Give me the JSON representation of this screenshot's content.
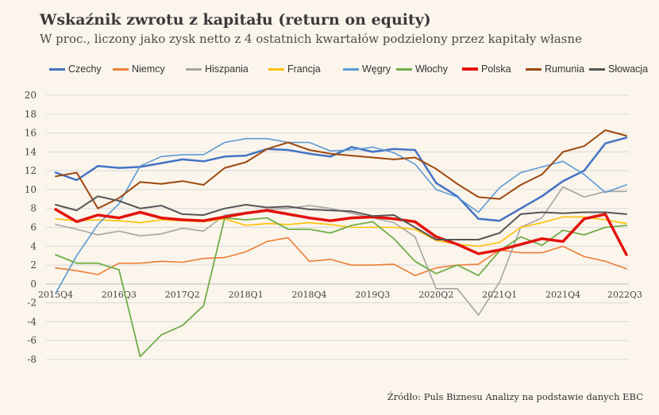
{
  "title": "Wskaźnik zwrotu z kapitału (return on equity)",
  "subtitle": "W proc., liczony jako zysk netto z 4 ostatnich kwartałów podzielony przez kapitały własne",
  "source": "Źródło: Puls Biznesu Analizy na podstawie danych EBC",
  "chart_data": {
    "type": "line",
    "title": "Wskaźnik zwrotu z kapitału (return on equity)",
    "ylim": [
      -8,
      20
    ],
    "yticks": [
      -8,
      -6,
      -4,
      -2,
      0,
      2,
      4,
      6,
      8,
      10,
      12,
      14,
      16,
      18,
      20
    ],
    "grid": true,
    "legend": "top",
    "x": [
      "2015Q4",
      "2016Q1",
      "2016Q2",
      "2016Q3",
      "2016Q4",
      "2017Q1",
      "2017Q2",
      "2017Q3",
      "2017Q4",
      "2018Q1",
      "2018Q2",
      "2018Q3",
      "2018Q4",
      "2019Q1",
      "2019Q2",
      "2019Q3",
      "2019Q4",
      "2020Q1",
      "2020Q2",
      "2020Q3",
      "2020Q4",
      "2021Q1",
      "2021Q2",
      "2021Q3",
      "2021Q4",
      "2022Q1",
      "2022Q2",
      "2022Q3"
    ],
    "xtick_labels": [
      "2015Q4",
      "",
      "",
      "2016Q3",
      "",
      "",
      "2017Q2",
      "",
      "",
      "2018Q1",
      "",
      "",
      "2018Q4",
      "",
      "",
      "2019Q3",
      "",
      "",
      "2020Q2",
      "",
      "",
      "2021Q1",
      "",
      "",
      "2021Q4",
      "",
      "",
      "2022Q3"
    ],
    "series": [
      {
        "name": "Czechy",
        "color": "#4472c4",
        "width": 2.5,
        "values": [
          11.8,
          11.0,
          12.5,
          12.3,
          12.4,
          12.8,
          13.2,
          13.0,
          13.5,
          13.6,
          14.3,
          14.2,
          13.8,
          13.5,
          14.5,
          14.0,
          14.3,
          14.2,
          10.7,
          9.3,
          6.9,
          6.7,
          8.0,
          9.3,
          10.9,
          12.0,
          14.9,
          15.5
        ]
      },
      {
        "name": "Niemcy",
        "color": "#ed7d31",
        "width": 1.6,
        "values": [
          1.7,
          1.4,
          1.0,
          2.2,
          2.2,
          2.4,
          2.3,
          2.7,
          2.8,
          3.4,
          4.5,
          4.9,
          2.4,
          2.6,
          2.0,
          2.0,
          2.1,
          0.9,
          1.7,
          2.0,
          2.1,
          3.6,
          3.3,
          3.3,
          4.0,
          2.9,
          2.4,
          1.6
        ]
      },
      {
        "name": "Hiszpania",
        "color": "#a5a5a5",
        "width": 1.6,
        "values": [
          6.3,
          5.8,
          5.2,
          5.6,
          5.1,
          5.3,
          5.9,
          5.6,
          7.3,
          7.6,
          7.9,
          8.0,
          8.3,
          8.0,
          7.5,
          7.0,
          6.5,
          5.0,
          -0.5,
          -0.5,
          -3.3,
          0.2,
          6.0,
          7.0,
          10.3,
          9.2,
          9.8,
          9.8
        ]
      },
      {
        "name": "Francja",
        "color": "#ffc000",
        "width": 1.6,
        "values": [
          6.9,
          6.7,
          6.8,
          6.7,
          6.5,
          6.8,
          6.7,
          6.6,
          6.9,
          6.2,
          6.4,
          6.3,
          6.5,
          6.3,
          6.0,
          6.0,
          6.0,
          5.8,
          4.6,
          4.2,
          4.0,
          4.4,
          6.0,
          6.5,
          7.1,
          7.1,
          6.8,
          6.4
        ]
      },
      {
        "name": "Węgry",
        "color": "#5b9bd5",
        "width": 1.6,
        "values": [
          -1.0,
          3.0,
          6.3,
          8.5,
          12.5,
          13.5,
          13.7,
          13.7,
          15.0,
          15.4,
          15.4,
          15.0,
          15.0,
          14.1,
          14.2,
          14.5,
          13.9,
          12.7,
          10.0,
          9.2,
          7.6,
          10.2,
          11.8,
          12.4,
          13.0,
          11.6,
          9.7,
          10.5
        ]
      },
      {
        "name": "Włochy",
        "color": "#70ad47",
        "width": 1.8,
        "values": [
          3.1,
          2.2,
          2.2,
          1.5,
          -7.7,
          -5.4,
          -4.4,
          -2.3,
          7.0,
          6.8,
          7.0,
          5.8,
          5.8,
          5.4,
          6.2,
          6.6,
          4.8,
          2.4,
          1.1,
          2.0,
          0.9,
          3.5,
          5.0,
          4.1,
          5.7,
          5.2,
          6.0,
          6.2
        ]
      },
      {
        "name": "Polska",
        "color": "#e3120b",
        "width": 3.5,
        "values": [
          7.9,
          6.6,
          7.3,
          7.0,
          7.6,
          7.0,
          6.8,
          6.7,
          7.1,
          7.5,
          7.8,
          7.4,
          7.0,
          6.7,
          7.0,
          7.1,
          6.9,
          6.6,
          5.0,
          4.2,
          3.2,
          3.6,
          4.2,
          4.8,
          4.5,
          6.9,
          7.4,
          3.1
        ]
      },
      {
        "name": "Rumunia",
        "color": "#9e480e",
        "width": 2.0,
        "values": [
          11.4,
          11.8,
          8.0,
          9.1,
          10.8,
          10.6,
          10.9,
          10.5,
          12.3,
          12.9,
          14.3,
          15.0,
          14.2,
          13.8,
          13.6,
          13.4,
          13.2,
          13.4,
          12.2,
          10.6,
          9.2,
          9.0,
          10.5,
          11.6,
          14.0,
          14.6,
          16.3,
          15.7
        ]
      },
      {
        "name": "Słowacja",
        "color": "#555555",
        "width": 2.0,
        "values": [
          8.4,
          7.8,
          9.3,
          8.8,
          8.0,
          8.3,
          7.4,
          7.3,
          8.0,
          8.4,
          8.1,
          8.2,
          7.9,
          7.8,
          7.7,
          7.2,
          7.3,
          6.0,
          4.7,
          4.7,
          4.7,
          5.4,
          7.4,
          7.6,
          7.5,
          7.6,
          7.6,
          7.4
        ]
      }
    ]
  }
}
